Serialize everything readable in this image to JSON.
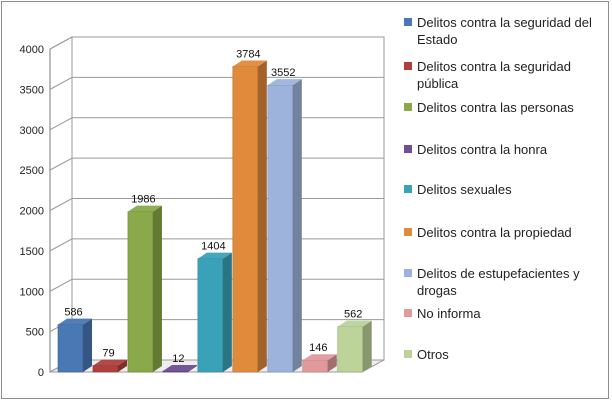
{
  "chart_data": {
    "type": "bar",
    "style": "3d-column",
    "categories": [
      "Delitos contra la seguridad del Estado",
      "Delitos contra la seguridad pública",
      "Delitos contra las personas",
      "Delitos contra la honra",
      "Delitos sexuales",
      "Delitos contra la propiedad",
      "Delitos de estupefacientes y drogas",
      "No informa",
      "Otros"
    ],
    "values": [
      586,
      79,
      1986,
      12,
      1404,
      3784,
      3552,
      146,
      562
    ],
    "data_labels": [
      "586",
      "79",
      "1986",
      "12",
      "1404",
      "3784",
      "3552",
      "146",
      "562"
    ],
    "colors": [
      "#4a78b5",
      "#b0403d",
      "#89a94a",
      "#6e4e94",
      "#3aa2b8",
      "#e08a3c",
      "#9db3dc",
      "#e09a9c",
      "#bcd39a"
    ],
    "ylim": [
      0,
      4000
    ],
    "yticks": [
      "0",
      "500",
      "1000",
      "1500",
      "2000",
      "2500",
      "3000",
      "3500",
      "4000"
    ],
    "grid": true,
    "legend_position": "right",
    "title": "",
    "xlabel": "",
    "ylabel": ""
  }
}
